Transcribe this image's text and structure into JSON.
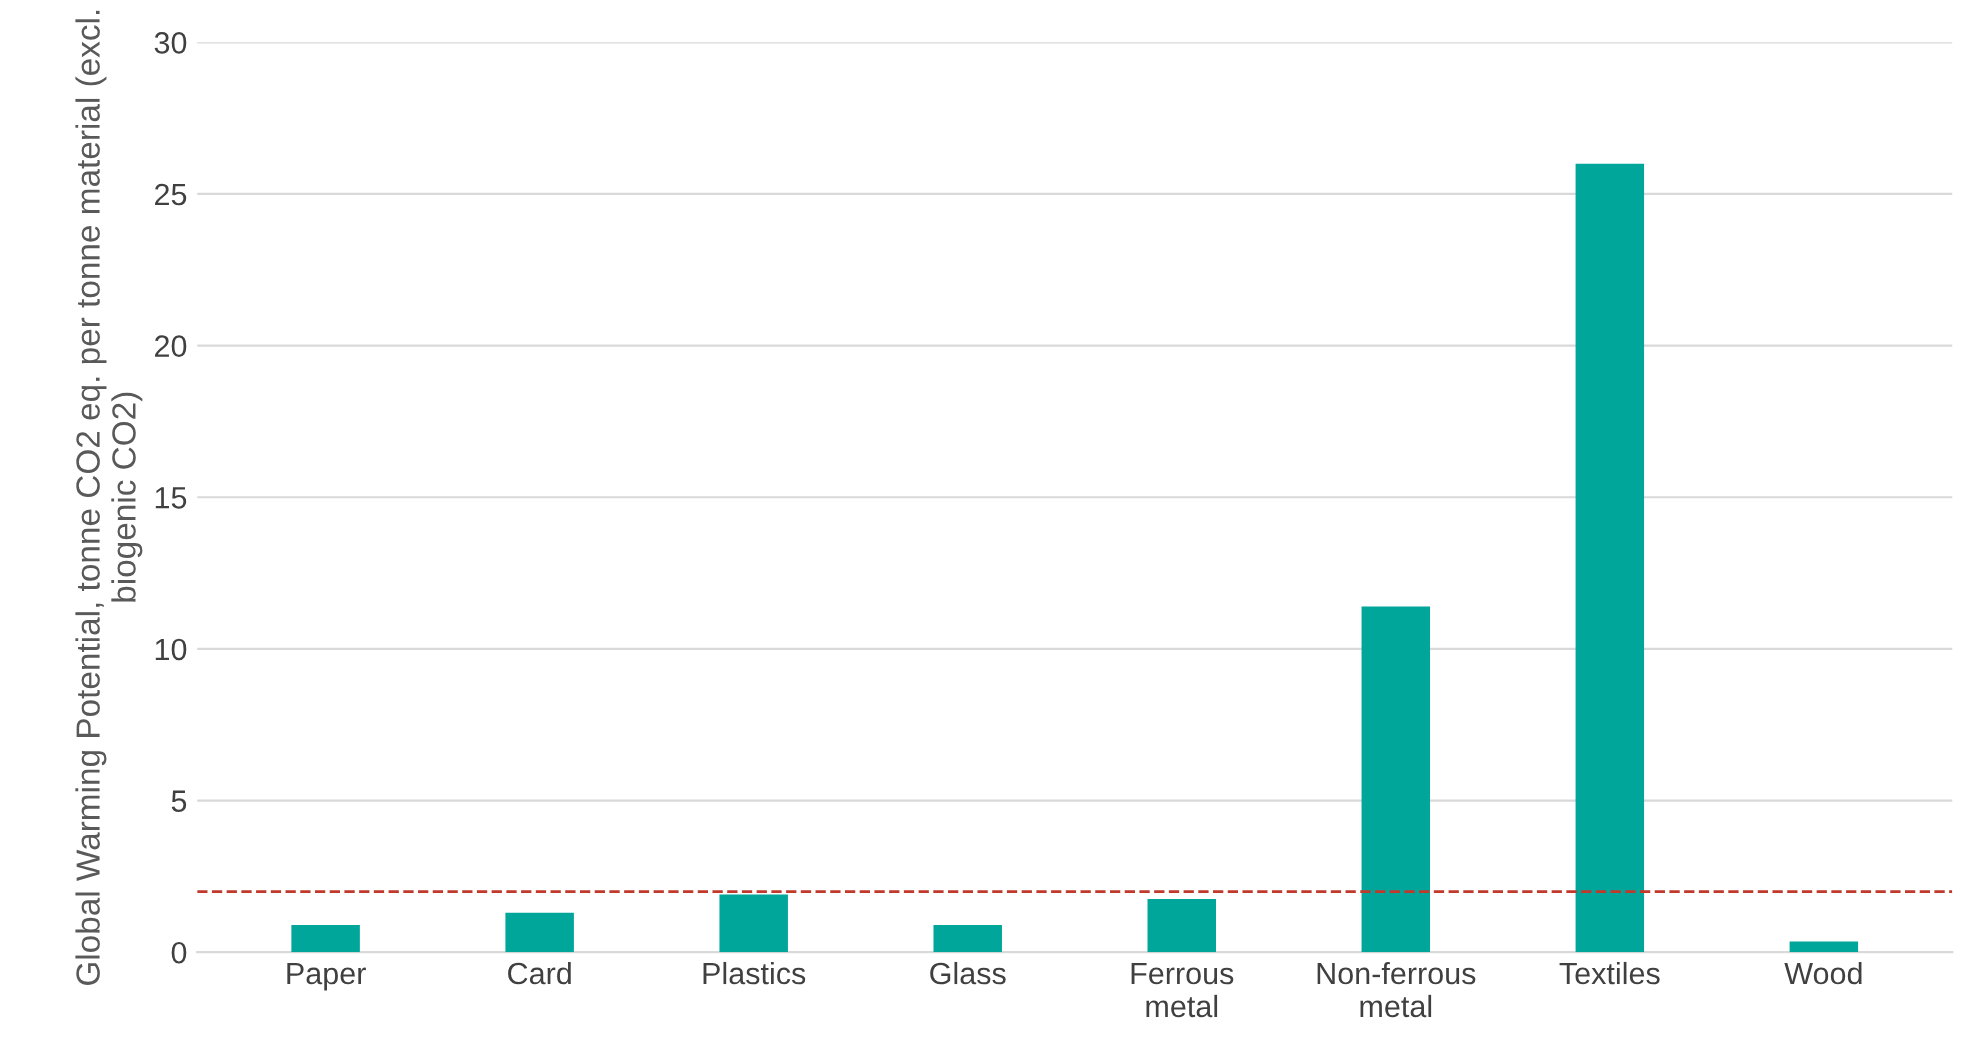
{
  "chart_data": {
    "type": "bar",
    "ylabel": "Global Warming Potential, tonne CO2 eq. per tonne material (excl. biogenic CO2)",
    "categories": [
      "Paper",
      "Card",
      "Plastics",
      "Glass",
      "Ferrous\nmetal",
      "Non-ferrous\nmetal",
      "Textiles",
      "Wood"
    ],
    "values": [
      0.9,
      1.3,
      1.9,
      0.9,
      1.75,
      11.4,
      26.0,
      0.35
    ],
    "color": "#00a69a",
    "ylim": [
      0,
      30
    ],
    "yticks": [
      0,
      5,
      10,
      15,
      20,
      25,
      30
    ],
    "grid": "y",
    "ref_lines": [
      {
        "axis": "y",
        "value": 2.0,
        "color": "#c0392b",
        "line_style": "dashed"
      }
    ]
  }
}
